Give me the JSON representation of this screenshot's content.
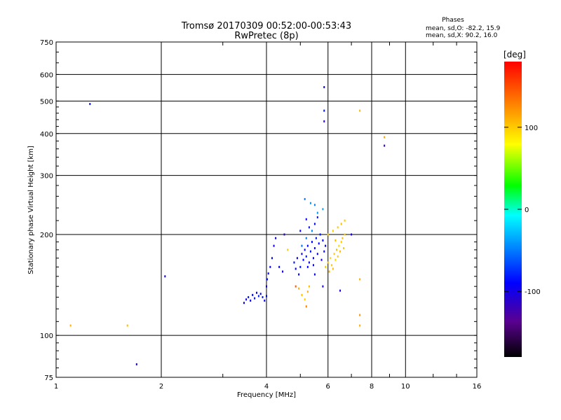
{
  "chart_data": {
    "type": "scatter",
    "title": "Tromsø 20170309 00:52:00-00:53:43",
    "subtitle": "RwPretec (8p)",
    "stats_header": "Phases",
    "stats_line1": "mean, sd,O: -82.2, 15.9",
    "stats_line2": "mean, sd,X:  90.2, 16.0",
    "xlabel": "Frequency [MHz]",
    "ylabel": "Stationary phase Virtual Height [km]",
    "x_scale": "log",
    "y_scale": "log",
    "xlim": [
      1,
      16
    ],
    "ylim": [
      75,
      750
    ],
    "x_ticks": [
      1,
      2,
      4,
      6,
      8,
      10,
      16
    ],
    "y_ticks": [
      75,
      100,
      200,
      300,
      400,
      500,
      600,
      750
    ],
    "grid": true,
    "colorbar": {
      "label": "[deg]",
      "range": [
        -180,
        180
      ],
      "ticks": [
        100,
        0,
        -100
      ]
    },
    "series": [
      {
        "values": [
          [
            1.25,
            490,
            -85
          ],
          [
            2.05,
            150,
            -95
          ],
          [
            1.7,
            82,
            -105
          ],
          [
            5.85,
            550,
            -95
          ],
          [
            5.85,
            468,
            -85
          ],
          [
            5.85,
            435,
            -110
          ],
          [
            8.7,
            368,
            -120
          ],
          [
            3.45,
            125,
            -95
          ],
          [
            3.5,
            128,
            -90
          ],
          [
            3.55,
            130,
            -85
          ],
          [
            3.6,
            127,
            -95
          ],
          [
            3.65,
            132,
            -90
          ],
          [
            3.7,
            129,
            -85
          ],
          [
            3.75,
            134,
            -95
          ],
          [
            3.8,
            131,
            -80
          ],
          [
            3.85,
            133,
            -90
          ],
          [
            3.9,
            130,
            -85
          ],
          [
            3.95,
            127,
            -95
          ],
          [
            4.0,
            131,
            -90
          ],
          [
            4.0,
            140,
            -95
          ],
          [
            4.02,
            147,
            -85
          ],
          [
            4.05,
            153,
            -90
          ],
          [
            4.1,
            160,
            -95
          ],
          [
            4.15,
            170,
            -85
          ],
          [
            4.2,
            185,
            -100
          ],
          [
            4.25,
            195,
            -90
          ],
          [
            4.35,
            160,
            -90
          ],
          [
            4.45,
            155,
            -95
          ],
          [
            4.5,
            200,
            -110
          ],
          [
            4.8,
            165,
            -85
          ],
          [
            4.85,
            158,
            -90
          ],
          [
            4.9,
            170,
            -95
          ],
          [
            4.95,
            152,
            -90
          ],
          [
            5.0,
            160,
            -85
          ],
          [
            5.05,
            175,
            -100
          ],
          [
            5.1,
            168,
            -90
          ],
          [
            5.15,
            180,
            -95
          ],
          [
            5.2,
            172,
            -85
          ],
          [
            5.25,
            185,
            -90
          ],
          [
            5.3,
            165,
            -95
          ],
          [
            5.35,
            178,
            -85
          ],
          [
            5.4,
            190,
            -90
          ],
          [
            5.45,
            170,
            -95
          ],
          [
            5.5,
            182,
            -90
          ],
          [
            5.55,
            195,
            -85
          ],
          [
            5.6,
            175,
            -95
          ],
          [
            5.65,
            188,
            -90
          ],
          [
            5.7,
            200,
            -85
          ],
          [
            5.75,
            168,
            -100
          ],
          [
            5.8,
            192,
            -90
          ],
          [
            5.85,
            178,
            -95
          ],
          [
            5.9,
            185,
            -90
          ],
          [
            5.3,
            210,
            -85
          ],
          [
            5.5,
            215,
            -90
          ],
          [
            5.2,
            222,
            -95
          ],
          [
            5.6,
            225,
            -85
          ],
          [
            5.0,
            205,
            -90
          ],
          [
            5.25,
            160,
            -90
          ],
          [
            5.45,
            162,
            -95
          ],
          [
            5.05,
            185,
            -55
          ],
          [
            5.2,
            195,
            -50
          ],
          [
            5.4,
            205,
            -45
          ],
          [
            5.6,
            232,
            -40
          ],
          [
            5.8,
            238,
            -35
          ],
          [
            5.5,
            245,
            -45
          ],
          [
            5.15,
            255,
            -50
          ],
          [
            5.35,
            248,
            -40
          ],
          [
            5.5,
            152,
            -90
          ],
          [
            5.8,
            140,
            -100
          ],
          [
            7.0,
            200,
            -95
          ],
          [
            6.5,
            136,
            -100
          ]
        ]
      },
      {
        "values": [
          [
            1.1,
            107,
            110
          ],
          [
            1.6,
            107,
            105
          ],
          [
            7.4,
            468,
            105
          ],
          [
            8.7,
            390,
            115
          ],
          [
            7.4,
            115,
            120
          ],
          [
            7.4,
            107,
            110
          ],
          [
            7.4,
            147,
            110
          ],
          [
            5.9,
            160,
            100
          ],
          [
            6.0,
            165,
            105
          ],
          [
            6.05,
            155,
            110
          ],
          [
            6.1,
            170,
            95
          ],
          [
            6.15,
            162,
            100
          ],
          [
            6.2,
            158,
            105
          ],
          [
            6.25,
            175,
            100
          ],
          [
            6.3,
            168,
            95
          ],
          [
            6.35,
            180,
            105
          ],
          [
            6.4,
            172,
            100
          ],
          [
            6.45,
            185,
            95
          ],
          [
            6.5,
            178,
            105
          ],
          [
            6.55,
            190,
            100
          ],
          [
            6.6,
            195,
            105
          ],
          [
            6.65,
            182,
            100
          ],
          [
            6.7,
            200,
            95
          ],
          [
            6.4,
            210,
            100
          ],
          [
            6.55,
            215,
            105
          ],
          [
            6.7,
            220,
            100
          ],
          [
            6.2,
            205,
            100
          ],
          [
            6.0,
            200,
            95
          ],
          [
            6.3,
            192,
            105
          ],
          [
            4.95,
            138,
            110
          ],
          [
            5.05,
            132,
            105
          ],
          [
            5.15,
            128,
            100
          ],
          [
            5.25,
            135,
            110
          ],
          [
            5.3,
            140,
            105
          ],
          [
            4.6,
            180,
            100
          ],
          [
            4.85,
            140,
            145
          ],
          [
            5.2,
            122,
            130
          ]
        ]
      }
    ]
  }
}
